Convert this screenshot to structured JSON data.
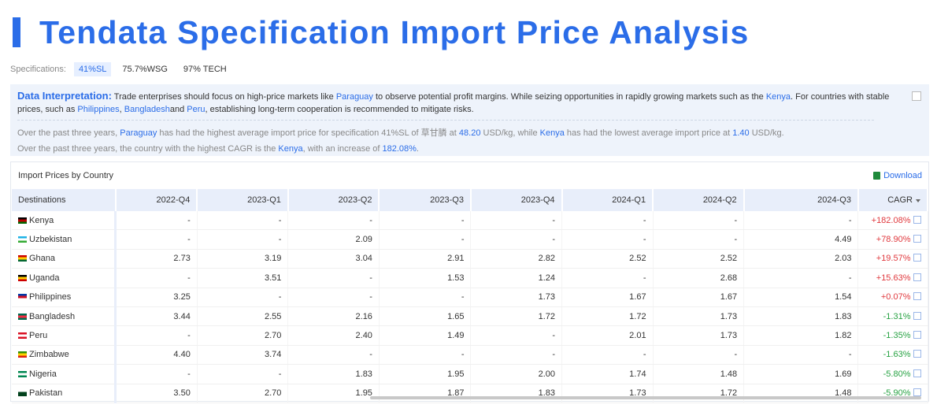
{
  "header": {
    "title": "Tendata Specification Import Price Analysis"
  },
  "specifications": {
    "label": "Specifications:",
    "options": [
      "41%SL",
      "75.7%WSG",
      "97% TECH"
    ],
    "selected": 0
  },
  "interpretation": {
    "label": "Data Interpretation:",
    "paragraph": [
      {
        "text": "Trade enterprises should focus on high-price markets like "
      },
      {
        "text": "Paraguay",
        "link": true
      },
      {
        "text": " to observe potential profit margins. While seizing opportunities in rapidly growing markets such as the "
      },
      {
        "text": "Kenya",
        "link": true
      },
      {
        "text": ". For countries with stable prices, such as "
      },
      {
        "text": "Philippines",
        "link": true
      },
      {
        "text": ", "
      },
      {
        "text": "Bangladesh",
        "link": true
      },
      {
        "text": "and "
      },
      {
        "text": "Peru",
        "link": true
      },
      {
        "text": ", establishing long-term cooperation is recommended to mitigate risks."
      }
    ],
    "facts": [
      [
        {
          "text": "Over the past three years, "
        },
        {
          "text": "Paraguay",
          "link": true
        },
        {
          "text": " has had the highest average import price for specification 41%SL of 草甘膦 at "
        },
        {
          "text": "48.20",
          "link": true
        },
        {
          "text": " USD/kg, while "
        },
        {
          "text": "Kenya",
          "link": true
        },
        {
          "text": " has had the lowest average import price at "
        },
        {
          "text": "1.40",
          "link": true
        },
        {
          "text": " USD/kg."
        }
      ],
      [
        {
          "text": "Over the past three years, the country with the highest CAGR is the "
        },
        {
          "text": "Kenya",
          "link": true
        },
        {
          "text": ", with an increase of "
        },
        {
          "text": "182.08%",
          "link": true
        },
        {
          "text": "."
        }
      ]
    ]
  },
  "table": {
    "title": "Import Prices by Country",
    "download": "Download",
    "headers": [
      "Destinations",
      "2022-Q4",
      "2023-Q1",
      "2023-Q2",
      "2023-Q3",
      "2023-Q4",
      "2024-Q1",
      "2024-Q2",
      "2024-Q3",
      "CAGR"
    ],
    "rows": [
      [
        "Kenya",
        "-",
        "-",
        "-",
        "-",
        "-",
        "-",
        "-",
        "-",
        "+182.08%"
      ],
      [
        "Uzbekistan",
        "-",
        "-",
        "2.09",
        "-",
        "-",
        "-",
        "-",
        "4.49",
        "+78.90%"
      ],
      [
        "Ghana",
        "2.73",
        "3.19",
        "3.04",
        "2.91",
        "2.82",
        "2.52",
        "2.52",
        "2.03",
        "+19.57%"
      ],
      [
        "Uganda",
        "-",
        "3.51",
        "-",
        "1.53",
        "1.24",
        "-",
        "2.68",
        "-",
        "+15.63%"
      ],
      [
        "Philippines",
        "3.25",
        "-",
        "-",
        "-",
        "1.73",
        "1.67",
        "1.67",
        "1.54",
        "+0.07%"
      ],
      [
        "Bangladesh",
        "3.44",
        "2.55",
        "2.16",
        "1.65",
        "1.72",
        "1.72",
        "1.73",
        "1.83",
        "-1.31%"
      ],
      [
        "Peru",
        "-",
        "2.70",
        "2.40",
        "1.49",
        "-",
        "2.01",
        "1.73",
        "1.82",
        "-1.35%"
      ],
      [
        "Zimbabwe",
        "4.40",
        "3.74",
        "-",
        "-",
        "-",
        "-",
        "-",
        "-",
        "-1.63%"
      ],
      [
        "Nigeria",
        "-",
        "-",
        "1.83",
        "1.95",
        "2.00",
        "1.74",
        "1.48",
        "1.69",
        "-5.80%"
      ],
      [
        "Pakistan",
        "3.50",
        "2.70",
        "1.95",
        "1.87",
        "1.83",
        "1.73",
        "1.72",
        "1.48",
        "-5.90%"
      ]
    ]
  }
}
